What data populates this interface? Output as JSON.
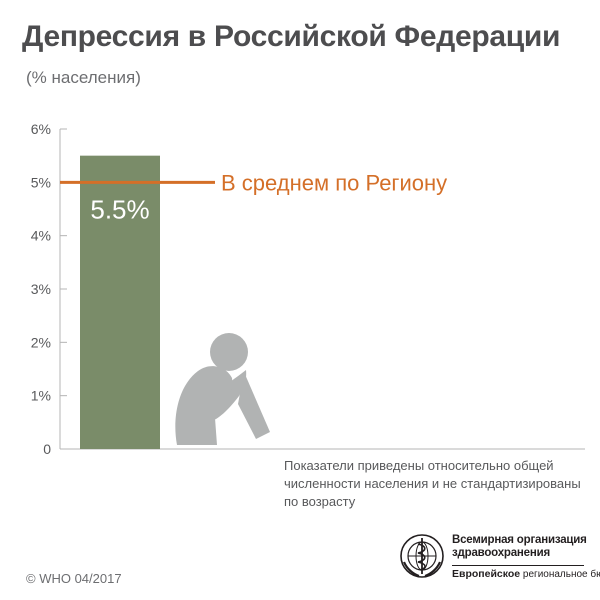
{
  "title": "Депрессия в Российской Федерации",
  "subtitle": "(% населения)",
  "chart_data": {
    "type": "bar",
    "categories": [
      ""
    ],
    "series": [
      {
        "values": [
          5.5
        ]
      }
    ],
    "value_label": "5.5%",
    "y_ticks": [
      "0",
      "1%",
      "2%",
      "3%",
      "4%",
      "5%",
      "6%"
    ],
    "ylim": [
      0,
      6
    ],
    "reference_line": {
      "value": 5.0,
      "label": "В среднем по Региону"
    },
    "grid": false,
    "legend": "none"
  },
  "colors": {
    "bar": "#7a8c69",
    "reference": "#d46f28",
    "figure": "#b1b3b3",
    "axis": "#b4b4b4",
    "text": "#58595b"
  },
  "icon": "sitting-person-icon",
  "note": "Показатели приведены относительно общей численности населения и не стандартизированы по возрасту",
  "copyright": "© WHO 04/2017",
  "logo": {
    "icon": "who-emblem-icon",
    "name": "Всемирная организация здравоохранения",
    "office_bold": "Европейское",
    "office_rest": "региональное бюро"
  }
}
